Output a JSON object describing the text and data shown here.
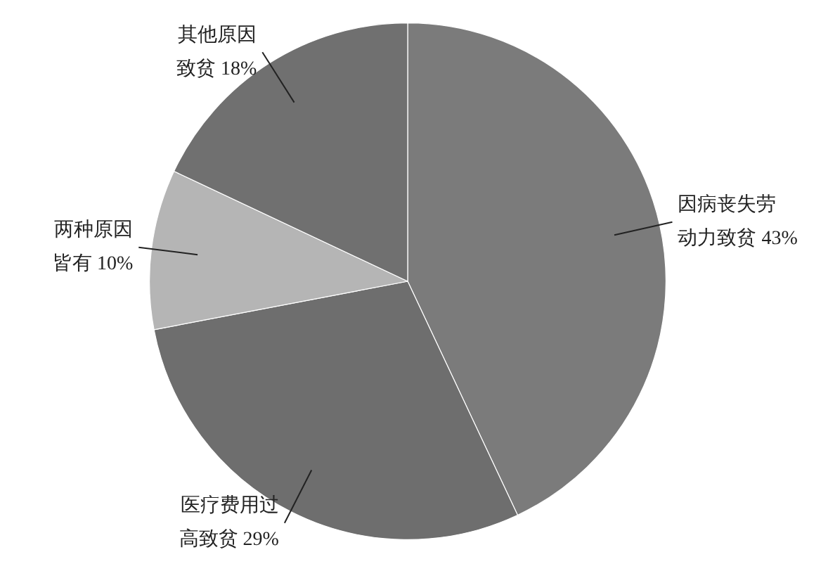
{
  "chart_data": {
    "type": "pie",
    "categories": [
      "因病丧失劳动力致贫",
      "医疗费用过高致贫",
      "两种原因皆有",
      "其他原因致贫"
    ],
    "values": [
      43,
      29,
      10,
      18
    ],
    "colors": [
      "#7b7b7b",
      "#6e6e6e",
      "#b5b5b5",
      "#707070"
    ],
    "value_labels": [
      "43%",
      "29%",
      "10%",
      "18%"
    ],
    "legend": false
  }
}
